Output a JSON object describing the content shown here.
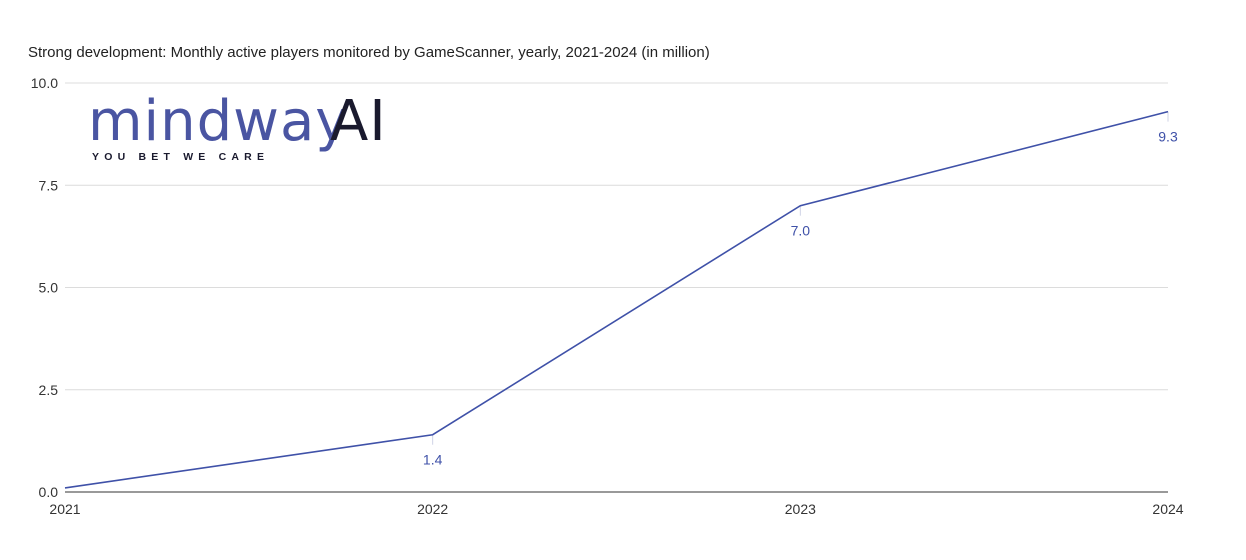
{
  "colors": {
    "series": "#3f51a8",
    "logo_primary": "#4a55a2",
    "logo_secondary": "#1a1a2e"
  },
  "logo": {
    "word": "mindway",
    "ai": "AI",
    "tagline": "YOU BET WE CARE"
  },
  "chart_data": {
    "type": "line",
    "title": "Strong development: Monthly active players monitored by GameScanner, yearly, 2021-2024 (in million)",
    "xlabel": "",
    "ylabel": "",
    "x": [
      "2021",
      "2022",
      "2023",
      "2024"
    ],
    "series": [
      {
        "values": [
          0.1,
          1.4,
          7.0,
          9.3
        ],
        "data_labels": [
          "",
          "1.4",
          "7.0",
          "9.3"
        ]
      }
    ],
    "ylim": [
      0,
      10
    ],
    "yticks": [
      "0.0",
      "2.5",
      "5.0",
      "7.5",
      "10.0"
    ],
    "grid": true,
    "legend": "none"
  }
}
